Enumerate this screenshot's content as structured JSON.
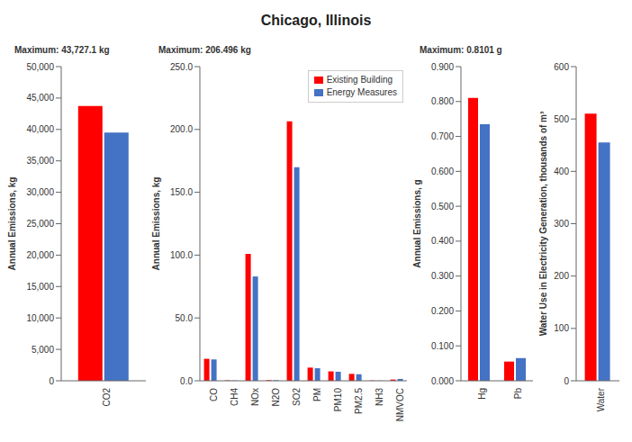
{
  "title": "Chicago, Illinois",
  "chart_data": [
    {
      "type": "bar",
      "categories": [
        "CO2"
      ],
      "series": [
        {
          "color": "#FF0000",
          "values": [
            43727.1
          ]
        },
        {
          "color": "#4472C4",
          "values": [
            39500
          ]
        }
      ],
      "ylabel": "Annual Emissions, kg",
      "ylim": [
        0,
        50000
      ],
      "yticks": [
        0,
        {
          "value": 5000,
          "label": "5,000"
        },
        {
          "value": 10000,
          "label": "10,000"
        },
        {
          "value": 15000,
          "label": "15,000"
        },
        {
          "value": 20000,
          "label": "20,000"
        },
        {
          "value": 25000,
          "label": "25,000"
        },
        {
          "value": 30000,
          "label": "30,000"
        },
        {
          "value": 35000,
          "label": "35,000"
        },
        {
          "value": 40000,
          "label": "40,000"
        },
        {
          "value": 45000,
          "label": "45,000"
        },
        {
          "value": 50000,
          "label": "50,000"
        }
      ],
      "annotation": "Maximum: 43,727.1 kg"
    },
    {
      "type": "bar",
      "categories": [
        "CO",
        "CH4",
        "NOx",
        "N2O",
        "SO2",
        "PM",
        "PM10",
        "PM2.5",
        "NH3",
        "NMVOC"
      ],
      "series": [
        {
          "name": "Existing Building",
          "color": "#FF0000",
          "values": [
            17.5,
            0.3,
            101.0,
            0.5,
            206.496,
            10.5,
            7.5,
            5.5,
            0.2,
            1.0
          ]
        },
        {
          "name": "Energy Measures",
          "color": "#4472C4",
          "values": [
            17.0,
            0.2,
            83.0,
            0.4,
            170.0,
            10.0,
            7.2,
            5.2,
            0.1,
            1.5
          ]
        }
      ],
      "ylabel": "Annual Emissions, kg",
      "ylim": [
        0,
        250
      ],
      "yticks": [
        {
          "value": 0,
          "label": "0.0"
        },
        {
          "value": 50,
          "label": "50.0"
        },
        {
          "value": 100,
          "label": "100.0"
        },
        {
          "value": 150,
          "label": "150.0"
        },
        {
          "value": 200,
          "label": "200.0"
        },
        {
          "value": 250,
          "label": "250.0"
        }
      ],
      "annotation": "Maximum: 206.496 kg",
      "legend": "upper right"
    },
    {
      "type": "bar",
      "categories": [
        "Hg",
        "Pb"
      ],
      "series": [
        {
          "color": "#FF0000",
          "values": [
            0.8101,
            0.055
          ]
        },
        {
          "color": "#4472C4",
          "values": [
            0.735,
            0.065
          ]
        }
      ],
      "ylabel": "Annual Emissions, g",
      "ylim": [
        0,
        0.9
      ],
      "yticks": [
        {
          "value": 0.0,
          "label": "0.000"
        },
        {
          "value": 0.1,
          "label": "0.100"
        },
        {
          "value": 0.2,
          "label": "0.200"
        },
        {
          "value": 0.3,
          "label": "0.300"
        },
        {
          "value": 0.4,
          "label": "0.400"
        },
        {
          "value": 0.5,
          "label": "0.500"
        },
        {
          "value": 0.6,
          "label": "0.600"
        },
        {
          "value": 0.7,
          "label": "0.700"
        },
        {
          "value": 0.8,
          "label": "0.800"
        },
        {
          "value": 0.9,
          "label": "0.900"
        }
      ],
      "annotation": "Maximum: 0.8101 g"
    },
    {
      "type": "bar",
      "categories": [
        "Water"
      ],
      "series": [
        {
          "color": "#FF0000",
          "values": [
            510
          ]
        },
        {
          "color": "#4472C4",
          "values": [
            455
          ]
        }
      ],
      "ylabel": "Water Use in Electricity Generation, thousands of m³",
      "ylim": [
        0,
        600
      ],
      "yticks": [
        0,
        100,
        200,
        300,
        400,
        500,
        600
      ]
    }
  ]
}
